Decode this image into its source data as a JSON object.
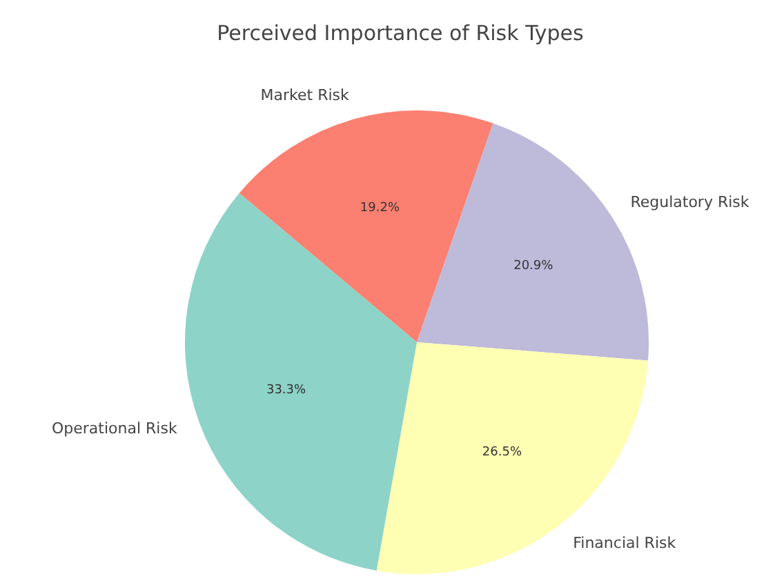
{
  "chart_data": {
    "type": "pie",
    "title": "Perceived Importance of Risk Types",
    "categories": [
      "Market Risk",
      "Regulatory Risk",
      "Financial Risk",
      "Operational Risk"
    ],
    "values": [
      19.2,
      20.9,
      26.5,
      33.3
    ],
    "colors": [
      "#fb8072",
      "#bebada",
      "#ffffb3",
      "#8dd3c7"
    ],
    "value_labels": [
      "19.2%",
      "20.9%",
      "26.5%",
      "33.3%"
    ],
    "legend": false
  }
}
